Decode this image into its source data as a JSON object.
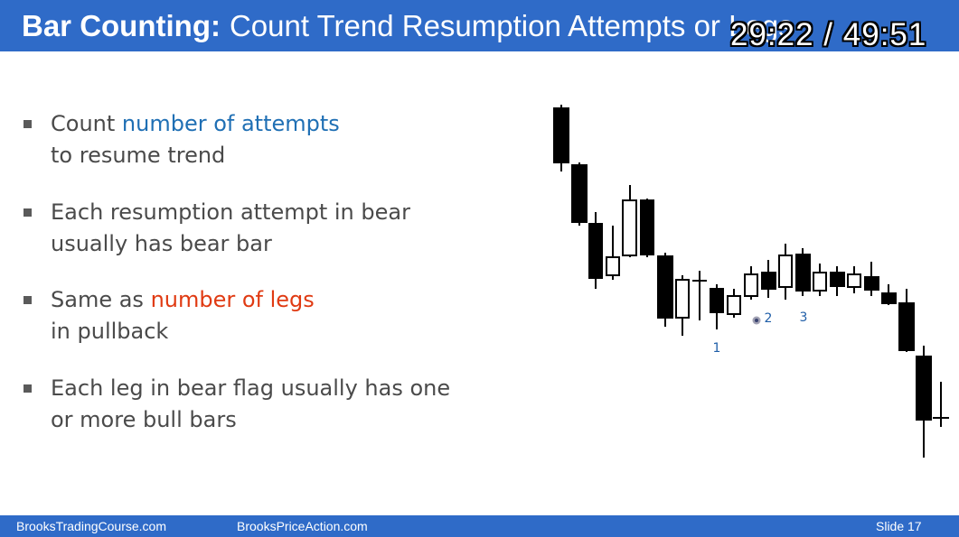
{
  "slide": {
    "title_bold": "Bar Counting:",
    "title_rest": "Count Trend Resumption Attempts or Legs",
    "timer": "29:22 / 49:51",
    "bullets": [
      {
        "before": "Count ",
        "highlight": "number of attempts",
        "after": "",
        "line2": "to resume trend",
        "highlight_color": "#1f6fb4"
      },
      {
        "before": "Each resumption attempt in bear",
        "highlight": "",
        "after": "",
        "line2": "usually has bear bar",
        "highlight_color": ""
      },
      {
        "before": "Same as ",
        "highlight": "number of legs",
        "after": "",
        "line2": "in pullback",
        "highlight_color": "#e03a12"
      },
      {
        "before": "Each leg in bear flag usually has one",
        "highlight": "",
        "after": "",
        "line2": "or more bull bars",
        "highlight_color": ""
      }
    ],
    "chart_labels": [
      "1",
      "2",
      "3"
    ],
    "footer": {
      "left": "BrooksTradingCourse.com",
      "center": "BrooksPriceAction.com",
      "right": "Slide  17"
    }
  },
  "colors": {
    "title_bar": "#2f6bc8",
    "body_text": "#4a4a4a",
    "blue_highlight": "#1f6fb4",
    "red_highlight": "#e03a12",
    "label_blue": "#1f5ea8"
  }
}
